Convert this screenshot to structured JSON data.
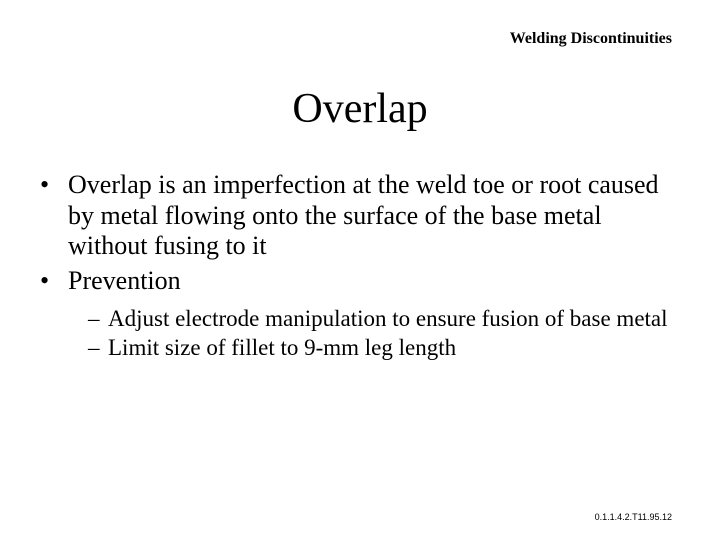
{
  "header": "Welding Discontinuities",
  "title": "Overlap",
  "bullets": {
    "b1": "Overlap is an imperfection at the weld toe or root caused by metal flowing onto the surface of the base metal without fusing to it",
    "b2": "Prevention"
  },
  "subs": {
    "s1": "Adjust electrode manipulation to ensure fusion of base metal",
    "s2": "Limit size of fillet to 9-mm leg length"
  },
  "footer": "0.1.1.4.2.T11.95.12"
}
